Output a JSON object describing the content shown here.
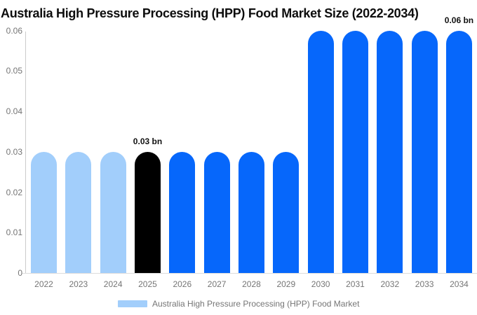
{
  "title": "Australia High Pressure Processing (HPP) Food Market Size (2022-2034)",
  "legend": {
    "label": "Australia High Pressure Processing (HPP) Food Market",
    "swatch_color": "#a2cefb"
  },
  "colors": {
    "historical": "#a2cefb",
    "base": "#000000",
    "forecast": "#0667fb"
  },
  "chart_data": {
    "type": "bar",
    "title": "Australia High Pressure Processing (HPP) Food Market Size (2022-2034)",
    "unit": "bn",
    "categories": [
      "2022",
      "2023",
      "2024",
      "2025",
      "2026",
      "2027",
      "2028",
      "2029",
      "2030",
      "2031",
      "2032",
      "2033",
      "2034"
    ],
    "values": [
      0.03,
      0.03,
      0.03,
      0.03,
      0.03,
      0.03,
      0.03,
      0.03,
      0.06,
      0.06,
      0.06,
      0.06,
      0.06
    ],
    "segments": [
      "historical",
      "historical",
      "historical",
      "base",
      "forecast",
      "forecast",
      "forecast",
      "forecast",
      "forecast",
      "forecast",
      "forecast",
      "forecast",
      "forecast"
    ],
    "annotations": [
      {
        "category": "2025",
        "text": "0.03 bn"
      },
      {
        "category": "2034",
        "text": "0.06 bn"
      }
    ],
    "yticks": [
      0,
      0.01,
      0.02,
      0.03,
      0.04,
      0.05,
      0.06
    ],
    "ytick_labels": [
      "0",
      "0.01",
      "0.02",
      "0.03",
      "0.04",
      "0.05",
      "0.06"
    ],
    "ylim": [
      0,
      0.06
    ],
    "xlabel": "",
    "ylabel": "",
    "grid": false,
    "legend_position": "bottom"
  }
}
